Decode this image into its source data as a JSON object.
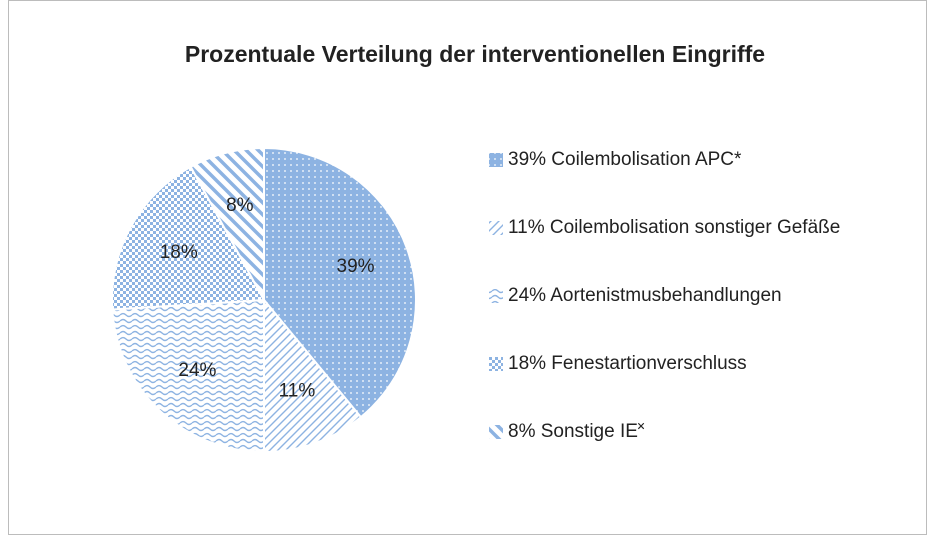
{
  "chart_data": {
    "type": "pie",
    "title": "Prozentuale Verteilung der interventionellen Eingriffe",
    "categories": [
      "39% Coilembolisation APC*",
      "11% Coilembolisation sonstiger Gefäße",
      "24% Aortenistmusbehandlungen",
      "18% Fenestartionverschluss",
      "8% Sonstige IE˟"
    ],
    "values": [
      39,
      11,
      24,
      18,
      8
    ],
    "value_labels": [
      "39%",
      "11%",
      "24%",
      "18%",
      "8%"
    ],
    "colors": [
      "#8db3e2",
      "#8db3e2",
      "#8db3e2",
      "#8db3e2",
      "#8db3e2"
    ],
    "legend": "right"
  }
}
